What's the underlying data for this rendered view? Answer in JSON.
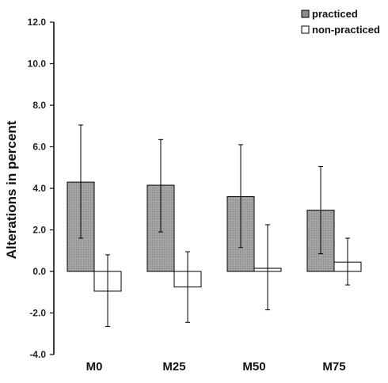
{
  "chart_data": {
    "type": "bar",
    "title": "",
    "xlabel": "",
    "ylabel": "Alterations in percent",
    "ylim": [
      -4.0,
      12.0
    ],
    "yticks": [
      "-4.0",
      "-2.0",
      "0.0",
      "2.0",
      "4.0",
      "6.0",
      "8.0",
      "10.0",
      "12.0"
    ],
    "categories": [
      "M0",
      "M25",
      "M50",
      "M75"
    ],
    "series": [
      {
        "name": "practiced",
        "color": "#9a9a9a",
        "values": [
          4.3,
          4.15,
          3.6,
          2.95
        ],
        "error_low": [
          1.6,
          1.9,
          1.15,
          0.85
        ],
        "error_high": [
          7.05,
          6.35,
          6.1,
          5.05
        ]
      },
      {
        "name": "non-practiced",
        "color": "#ffffff",
        "values": [
          -0.95,
          -0.75,
          0.15,
          0.45
        ],
        "error_low": [
          -2.65,
          -2.45,
          -1.85,
          -0.65
        ],
        "error_high": [
          0.8,
          0.95,
          2.25,
          1.6
        ]
      }
    ],
    "grid": false,
    "legend": "top-right"
  }
}
